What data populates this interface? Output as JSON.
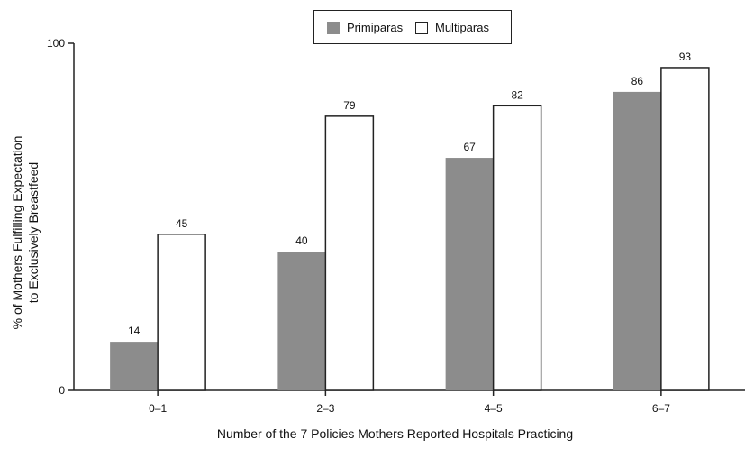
{
  "chart_data": {
    "type": "bar",
    "categories": [
      "0–1",
      "2–3",
      "4–5",
      "6–7"
    ],
    "series": [
      {
        "name": "Primiparas",
        "values": [
          14,
          40,
          67,
          86
        ],
        "color": "#8c8c8c"
      },
      {
        "name": "Multiparas",
        "values": [
          45,
          79,
          82,
          93
        ],
        "color": "#ffffff"
      }
    ],
    "ylim": [
      0,
      100
    ],
    "yticks": [
      0,
      100
    ],
    "ylabel_lines": [
      "% of Mothers Fulfilling Expectation",
      "to Exclusively Breastfeed"
    ],
    "xlabel": "Number of the 7 Policies Mothers Reported Hospitals Practicing",
    "legend_position": "top-center",
    "grid": false
  }
}
